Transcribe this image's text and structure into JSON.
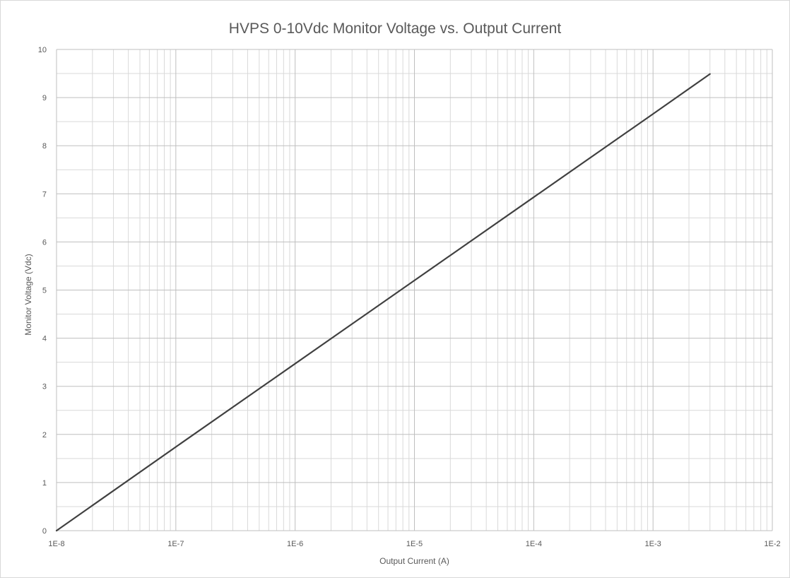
{
  "chart_data": {
    "type": "line",
    "title": "HVPS 0-10Vdc Monitor Voltage vs. Output Current",
    "xlabel": "Output Current (A)",
    "ylabel": "Monitor Voltage (Vdc)",
    "x_scale": "log",
    "xlim": [
      1e-08,
      0.01
    ],
    "ylim": [
      0,
      10
    ],
    "x_ticks": [
      "1E-8",
      "1E-7",
      "1E-6",
      "1E-5",
      "1E-4",
      "1E-3",
      "1E-2"
    ],
    "y_ticks": [
      "0",
      "1",
      "2",
      "3",
      "4",
      "5",
      "6",
      "7",
      "8",
      "9",
      "10"
    ],
    "grid": true,
    "legend": "none",
    "line_color": "#404040",
    "grid_color": "#d9d9d9",
    "series": [
      {
        "x": [
          1e-08,
          1e-07,
          1e-06,
          1e-05,
          0.0001,
          0.001,
          0.003
        ],
        "y": [
          0,
          1.74,
          3.47,
          5.2,
          6.93,
          8.66,
          9.49
        ]
      }
    ]
  }
}
